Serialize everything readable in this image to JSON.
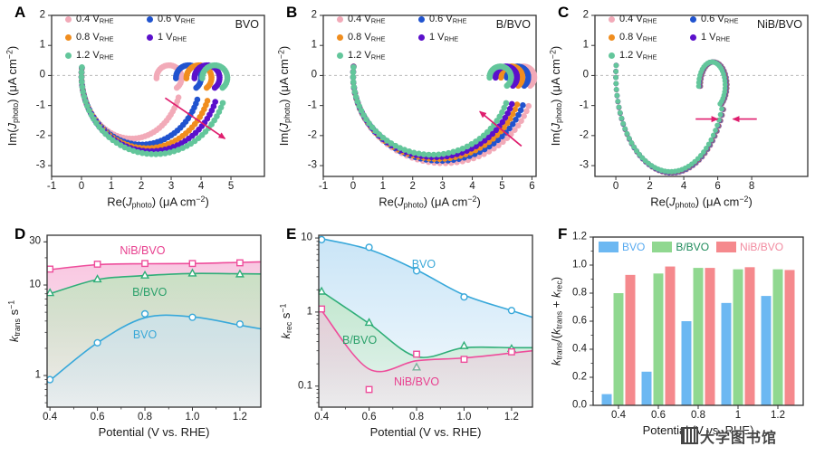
{
  "watermark": {
    "text": "大学图书馆"
  },
  "chart_data": [
    {
      "id": "A",
      "type": "scatter",
      "variant": "imps-nyquist",
      "sample": "BVO",
      "xlabel": [
        [
          "t",
          "Re("
        ],
        [
          "i",
          "J"
        ],
        [
          "sub",
          "photo"
        ],
        [
          "t",
          ") (μA cm"
        ],
        [
          "sup",
          "−2"
        ],
        [
          "t",
          ")"
        ]
      ],
      "ylabel": [
        [
          "t",
          "Im("
        ],
        [
          "i",
          "J"
        ],
        [
          "sub",
          "photo"
        ],
        [
          "t",
          ") (μA cm"
        ],
        [
          "sup",
          "−2"
        ],
        [
          "t",
          ")"
        ]
      ],
      "x_range": [
        -1,
        6.12
      ],
      "y_range": [
        -3.36,
        2.0
      ],
      "x_ticks": [
        {
          "v": -1,
          "t": "-1"
        },
        {
          "v": 0,
          "t": "0"
        },
        {
          "v": 1,
          "t": "1"
        },
        {
          "v": 2,
          "t": "2"
        },
        {
          "v": 3,
          "t": "3"
        },
        {
          "v": 4,
          "t": "4"
        },
        {
          "v": 5,
          "t": "5"
        }
      ],
      "y_ticks": [
        {
          "v": 2,
          "t": "2"
        },
        {
          "v": 1,
          "t": "1"
        },
        {
          "v": 0,
          "t": "0"
        },
        {
          "v": -1,
          "t": "-1"
        },
        {
          "v": -2,
          "t": "-2"
        },
        {
          "v": -3,
          "t": "-3"
        }
      ],
      "legend": [
        {
          "text": "0.4 V",
          "sub": "RHE",
          "color": "#f2aab8"
        },
        {
          "text": "0.8 V",
          "sub": "RHE",
          "color": "#f08d1e"
        },
        {
          "text": "1.2 V",
          "sub": "RHE",
          "color": "#63c69b"
        },
        {
          "text": "0.6 V",
          "sub": "RHE",
          "color": "#2053cf"
        },
        {
          "text": "1 V",
          "sub": "RHE",
          "color": "#5b10cb"
        }
      ],
      "zero_line": true,
      "hook": {
        "r": 0.42,
        "cy": -0.08
      },
      "dot_r": 3.3,
      "series": [
        {
          "name": "0.4 V_RHE",
          "color": "#f2aab8",
          "re_intercept": 3.35,
          "im_min": -2.1
        },
        {
          "name": "0.6 V_RHE",
          "color": "#2053cf",
          "re_intercept": 4.0,
          "im_min": -2.3
        },
        {
          "name": "0.8 V_RHE",
          "color": "#f08d1e",
          "re_intercept": 4.35,
          "im_min": -2.42
        },
        {
          "name": "1 V_RHE",
          "color": "#5b10cb",
          "re_intercept": 4.62,
          "im_min": -2.52
        },
        {
          "name": "1.2 V_RHE",
          "color": "#63c69b",
          "re_intercept": 4.88,
          "im_min": -2.62
        }
      ],
      "arrows": [
        [
          2.8,
          -0.75,
          4.8,
          -2.1
        ]
      ]
    },
    {
      "id": "B",
      "type": "scatter",
      "variant": "imps-nyquist",
      "sample": "B/BVO",
      "xlabel": [
        [
          "t",
          "Re("
        ],
        [
          "i",
          "J"
        ],
        [
          "sub",
          "photo"
        ],
        [
          "t",
          ") (μA cm"
        ],
        [
          "sup",
          "−2"
        ],
        [
          "t",
          ")"
        ]
      ],
      "ylabel": [
        [
          "t",
          "Im("
        ],
        [
          "i",
          "J"
        ],
        [
          "sub",
          "photo"
        ],
        [
          "t",
          ") (μA cm"
        ],
        [
          "sup",
          "−2"
        ],
        [
          "t",
          ")"
        ]
      ],
      "x_range": [
        -1,
        6.14
      ],
      "y_range": [
        -3.36,
        2.0
      ],
      "x_ticks": [
        {
          "v": -1,
          "t": "-1"
        },
        {
          "v": 0,
          "t": "0"
        },
        {
          "v": 1,
          "t": "1"
        },
        {
          "v": 2,
          "t": "2"
        },
        {
          "v": 3,
          "t": "3"
        },
        {
          "v": 4,
          "t": "4"
        },
        {
          "v": 5,
          "t": "5"
        },
        {
          "v": 6,
          "t": "6"
        }
      ],
      "y_ticks": [
        {
          "v": 2,
          "t": "2"
        },
        {
          "v": 1,
          "t": "1"
        },
        {
          "v": 0,
          "t": "0"
        },
        {
          "v": -1,
          "t": "-1"
        },
        {
          "v": -2,
          "t": "-2"
        },
        {
          "v": -3,
          "t": "-3"
        }
      ],
      "legend": [
        {
          "text": "0.4 V",
          "sub": "RHE",
          "color": "#f2aab8"
        },
        {
          "text": "0.8 V",
          "sub": "RHE",
          "color": "#f08d1e"
        },
        {
          "text": "1.2 V",
          "sub": "RHE",
          "color": "#63c69b"
        },
        {
          "text": "0.6 V",
          "sub": "RHE",
          "color": "#2053cf"
        },
        {
          "text": "1 V",
          "sub": "RHE",
          "color": "#5b10cb"
        }
      ],
      "zero_line": true,
      "hook": {
        "r": 0.36,
        "cy": -0.06
      },
      "dot_r": 3.3,
      "series": [
        {
          "name": "0.4 V_RHE",
          "color": "#f2aab8",
          "re_intercept": 6.08,
          "im_min": -2.92
        },
        {
          "name": "0.6 V_RHE",
          "color": "#2053cf",
          "re_intercept": 5.88,
          "im_min": -2.84
        },
        {
          "name": "0.8 V_RHE",
          "color": "#f08d1e",
          "re_intercept": 5.68,
          "im_min": -2.78
        },
        {
          "name": "1 V_RHE",
          "color": "#5b10cb",
          "re_intercept": 5.5,
          "im_min": -2.72
        },
        {
          "name": "1.2 V_RHE",
          "color": "#63c69b",
          "re_intercept": 5.3,
          "im_min": -2.64
        }
      ],
      "arrows": [
        [
          5.65,
          -2.35,
          4.25,
          -1.2
        ]
      ]
    },
    {
      "id": "C",
      "type": "scatter",
      "variant": "imps-nyquist",
      "sample": "NiB/BVO",
      "xlabel": [
        [
          "t",
          "Re("
        ],
        [
          "i",
          "J"
        ],
        [
          "sub",
          "photo"
        ],
        [
          "t",
          ") (μA cm"
        ],
        [
          "sup",
          "−2"
        ],
        [
          "t",
          ")"
        ]
      ],
      "ylabel": [
        [
          "t",
          "Im("
        ],
        [
          "i",
          "J"
        ],
        [
          "sub",
          "photo"
        ],
        [
          "t",
          ") (μA cm"
        ],
        [
          "sup",
          "−2"
        ],
        [
          "t",
          ")"
        ]
      ],
      "x_range": [
        -1.23,
        11.3
      ],
      "y_range": [
        -3.36,
        2.0
      ],
      "x_ticks": [
        {
          "v": 0,
          "t": "0"
        },
        {
          "v": 2,
          "t": "2"
        },
        {
          "v": 4,
          "t": "4"
        },
        {
          "v": 6,
          "t": "6"
        },
        {
          "v": 8,
          "t": "8"
        }
      ],
      "y_ticks": [
        {
          "v": 2,
          "t": "2"
        },
        {
          "v": 1,
          "t": "1"
        },
        {
          "v": 0,
          "t": "0"
        },
        {
          "v": -1,
          "t": "-1"
        },
        {
          "v": -2,
          "t": "-2"
        },
        {
          "v": -3,
          "t": "-3"
        }
      ],
      "legend": [
        {
          "text": "0.4 V",
          "sub": "RHE",
          "color": "#f2aab8"
        },
        {
          "text": "0.8 V",
          "sub": "RHE",
          "color": "#f08d1e"
        },
        {
          "text": "1.2 V",
          "sub": "RHE",
          "color": "#63c69b"
        },
        {
          "text": "0.6 V",
          "sub": "RHE",
          "color": "#2053cf"
        },
        {
          "text": "1 V",
          "sub": "RHE",
          "color": "#5b10cb"
        }
      ],
      "zero_line": true,
      "hook": {
        "r": 0.78,
        "cy": -0.33
      },
      "dot_r": 2.9,
      "series": [
        {
          "name": "0.4 V_RHE",
          "color": "#f2aab8",
          "re_intercept": 6.56,
          "im_min": -3.26
        },
        {
          "name": "0.6 V_RHE",
          "color": "#2053cf",
          "re_intercept": 6.53,
          "im_min": -3.24
        },
        {
          "name": "0.8 V_RHE",
          "color": "#f08d1e",
          "re_intercept": 6.5,
          "im_min": -3.22
        },
        {
          "name": "1 V_RHE",
          "color": "#5b10cb",
          "re_intercept": 6.47,
          "im_min": -3.21
        },
        {
          "name": "1.2 V_RHE",
          "color": "#63c69b",
          "re_intercept": 6.44,
          "im_min": -3.2
        }
      ],
      "arrows": [
        [
          4.7,
          -1.45,
          6.0,
          -1.45
        ],
        [
          8.3,
          -1.45,
          6.9,
          -1.45
        ]
      ]
    },
    {
      "id": "D",
      "type": "line",
      "ylog": true,
      "xlabel": [
        [
          "t",
          "Potential (V vs. RHE)"
        ]
      ],
      "ylabel": [
        [
          "i",
          "k"
        ],
        [
          "sub",
          "trans"
        ],
        [
          "t",
          " s"
        ],
        [
          "sup",
          "−1"
        ]
      ],
      "x": [
        0.4,
        0.6,
        0.8,
        1.0,
        1.2
      ],
      "x_range": [
        0.388,
        1.288
      ],
      "y_range": [
        0.447,
        35.5
      ],
      "x_ticks": [
        {
          "v": 0.4,
          "t": "0.4"
        },
        {
          "v": 0.6,
          "t": "0.6"
        },
        {
          "v": 0.8,
          "t": "0.8"
        },
        {
          "v": 1.0,
          "t": "1.0"
        },
        {
          "v": 1.2,
          "t": "1.2"
        }
      ],
      "y_ticks": [
        {
          "v": 1,
          "t": "1"
        },
        {
          "v": 10,
          "t": "10"
        },
        {
          "v": 30,
          "t": "30"
        }
      ],
      "series": [
        {
          "name": "NiB/BVO",
          "color": "#ee4d9b",
          "fill": "#f7bcdb",
          "marker": "square",
          "values": [
            15,
            17,
            17.3,
            17.3,
            17.6
          ],
          "line_values": [
            14.8,
            16.8,
            17.2,
            17.3,
            17.8
          ],
          "label_pos": [
            0.79,
            24
          ],
          "label_color": "#e8408f"
        },
        {
          "name": "B/BVO",
          "color": "#2fae78",
          "fill": "#bce6bc",
          "marker": "triangle",
          "values": [
            8.2,
            11.6,
            12.8,
            13.5,
            13.2
          ],
          "line_values": [
            8.0,
            11.5,
            12.7,
            13.4,
            13.3
          ],
          "label_pos": [
            0.82,
            8.3
          ],
          "label_color": "#2aa06a"
        },
        {
          "name": "BVO",
          "color": "#38a8da",
          "fill": "#c6e3f6",
          "marker": "circle",
          "values": [
            0.9,
            2.3,
            4.8,
            4.4,
            3.7
          ],
          "line_values": [
            0.88,
            2.3,
            4.35,
            4.45,
            3.6
          ],
          "label_pos": [
            0.8,
            2.85
          ],
          "label_color": "#3aa8d8"
        }
      ]
    },
    {
      "id": "E",
      "type": "line",
      "ylog": true,
      "xlabel": [
        [
          "t",
          "Potential (V vs. RHE)"
        ]
      ],
      "ylabel": [
        [
          "i",
          "k"
        ],
        [
          "sub",
          "rec"
        ],
        [
          "t",
          " s"
        ],
        [
          "sup",
          "−1"
        ]
      ],
      "x": [
        0.4,
        0.6,
        0.8,
        1.0,
        1.2
      ],
      "x_range": [
        0.388,
        1.288
      ],
      "y_range": [
        0.052,
        10.9
      ],
      "x_ticks": [
        {
          "v": 0.4,
          "t": "0.4"
        },
        {
          "v": 0.6,
          "t": "0.6"
        },
        {
          "v": 0.8,
          "t": "0.8"
        },
        {
          "v": 1.0,
          "t": "1.0"
        },
        {
          "v": 1.2,
          "t": "1.2"
        }
      ],
      "y_ticks": [
        {
          "v": 0.1,
          "t": "0.1"
        },
        {
          "v": 1,
          "t": "1"
        },
        {
          "v": 10,
          "t": "10"
        }
      ],
      "series": [
        {
          "name": "BVO",
          "color": "#38a8da",
          "fill": "#c6e3f6",
          "marker": "circle",
          "values": [
            9.5,
            7.5,
            3.6,
            1.6,
            1.05
          ],
          "line_values": [
            9.8,
            7.0,
            3.7,
            1.7,
            1.05
          ],
          "label_pos": [
            0.83,
            4.4
          ],
          "label_color": "#3aa8d8"
        },
        {
          "name": "B/BVO",
          "color": "#2fae78",
          "fill": "#bce6bc",
          "marker": "triangle",
          "values": [
            1.9,
            0.72,
            0.18,
            0.35,
            0.32
          ],
          "line_values": [
            1.9,
            0.7,
            0.25,
            0.33,
            0.33
          ],
          "label_pos": [
            0.56,
            0.42
          ],
          "label_color": "#2aa06a"
        },
        {
          "name": "NiB/BVO",
          "color": "#ee4d9b",
          "fill": "#f7bcdb",
          "marker": "square",
          "values": [
            1.1,
            0.09,
            0.27,
            0.23,
            0.29
          ],
          "line_values": [
            1.05,
            0.17,
            0.22,
            0.24,
            0.28
          ],
          "label_pos": [
            0.8,
            0.115
          ],
          "label_color": "#e8408f"
        }
      ]
    },
    {
      "id": "F",
      "type": "bar",
      "xlabel": [
        [
          "t",
          "Potential (V vs. RHE)"
        ]
      ],
      "ylabel": [
        [
          "i",
          "k"
        ],
        [
          "sub",
          "trans"
        ],
        [
          "t",
          "/("
        ],
        [
          "i",
          "k"
        ],
        [
          "sub",
          "trans"
        ],
        [
          "t",
          " + "
        ],
        [
          "i",
          "k"
        ],
        [
          "sub",
          "rec"
        ],
        [
          "t",
          ")"
        ]
      ],
      "categories": [
        "0.4",
        "0.6",
        "0.8",
        "1",
        "1.2"
      ],
      "y_range": [
        0,
        1.2
      ],
      "y_ticks": [
        {
          "v": 0,
          "t": "0.0"
        },
        {
          "v": 0.2,
          "t": "0.2"
        },
        {
          "v": 0.4,
          "t": "0.4"
        },
        {
          "v": 0.6,
          "t": "0.6"
        },
        {
          "v": 0.8,
          "t": "0.8"
        },
        {
          "v": 1.0,
          "t": "1.0"
        },
        {
          "v": 1.2,
          "t": "1.2"
        }
      ],
      "series": [
        {
          "name": "BVO",
          "color": "#6cb8f2",
          "text_color": "#57aaf0",
          "values": [
            0.08,
            0.24,
            0.6,
            0.73,
            0.78
          ]
        },
        {
          "name": "B/BVO",
          "color": "#90d890",
          "text_color": "#1d8a5a",
          "values": [
            0.8,
            0.94,
            0.98,
            0.97,
            0.97
          ]
        },
        {
          "name": "NiB/BVO",
          "color": "#f5898d",
          "text_color": "#f28ba0",
          "values": [
            0.93,
            0.99,
            0.98,
            0.985,
            0.965
          ]
        }
      ]
    }
  ]
}
